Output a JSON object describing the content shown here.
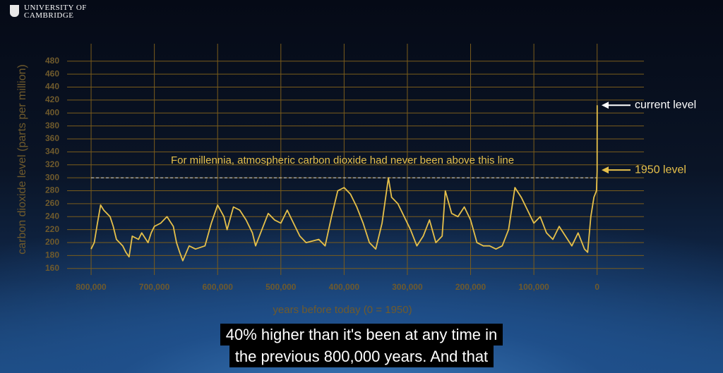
{
  "logo": [
    "UNIVERSITY OF",
    "CAMBRIDGE"
  ],
  "subtitles": [
    "40% higher than it's been at any time in",
    "the previous 800,000 years. And that"
  ],
  "chart_data": {
    "type": "line",
    "ylabel": "carbon dioxide level (parts per million)",
    "xlabel": "years before today (0 = 1950)",
    "threshold": {
      "text": "For millennia, atmospheric carbon dioxide had never been above this line",
      "value": 300
    },
    "annotations": [
      {
        "text": "current level",
        "value": 412
      },
      {
        "text": "1950 level",
        "value": 312
      }
    ],
    "color": "#e6c04a",
    "grid": true,
    "xlim": [
      838000,
      -74000
    ],
    "ylim": [
      150,
      507
    ],
    "xticks": [
      {
        "value": 800000,
        "label": "800,000"
      },
      {
        "value": 700000,
        "label": "700,000"
      },
      {
        "value": 600000,
        "label": "600,000"
      },
      {
        "value": 500000,
        "label": "500,000"
      },
      {
        "value": 400000,
        "label": "400,000"
      },
      {
        "value": 300000,
        "label": "300,000"
      },
      {
        "value": 200000,
        "label": "200,000"
      },
      {
        "value": 100000,
        "label": "100,000"
      },
      0
    ],
    "yticks": [
      160,
      180,
      200,
      220,
      240,
      260,
      280,
      300,
      320,
      340,
      360,
      380,
      400,
      420,
      440,
      460,
      480
    ],
    "x": [
      800000,
      795000,
      790000,
      785000,
      780000,
      770000,
      765000,
      760000,
      750000,
      745000,
      740000,
      735000,
      725000,
      720000,
      710000,
      705000,
      700000,
      690000,
      680000,
      670000,
      665000,
      660000,
      655000,
      645000,
      635000,
      620000,
      610000,
      600000,
      590000,
      585000,
      575000,
      565000,
      555000,
      545000,
      540000,
      530000,
      520000,
      510000,
      500000,
      490000,
      480000,
      470000,
      460000,
      440000,
      430000,
      420000,
      410000,
      400000,
      390000,
      380000,
      370000,
      360000,
      350000,
      340000,
      330000,
      325000,
      315000,
      305000,
      295000,
      285000,
      275000,
      265000,
      255000,
      245000,
      240000,
      230000,
      220000,
      210000,
      200000,
      190000,
      180000,
      170000,
      160000,
      150000,
      140000,
      130000,
      120000,
      110000,
      100000,
      90000,
      80000,
      70000,
      60000,
      50000,
      40000,
      30000,
      20000,
      15000,
      10000,
      5000,
      1000,
      0,
      -60
    ],
    "values": [
      190,
      200,
      230,
      258,
      250,
      240,
      225,
      205,
      195,
      185,
      178,
      210,
      205,
      215,
      200,
      215,
      225,
      230,
      240,
      225,
      200,
      185,
      172,
      195,
      190,
      195,
      230,
      258,
      240,
      220,
      255,
      250,
      235,
      215,
      195,
      220,
      245,
      235,
      230,
      250,
      230,
      210,
      200,
      205,
      195,
      240,
      280,
      285,
      275,
      255,
      230,
      200,
      190,
      230,
      300,
      270,
      260,
      240,
      220,
      195,
      210,
      235,
      200,
      210,
      280,
      245,
      240,
      255,
      235,
      200,
      195,
      195,
      190,
      195,
      220,
      285,
      270,
      250,
      230,
      240,
      215,
      205,
      225,
      210,
      195,
      215,
      190,
      185,
      240,
      270,
      280,
      310,
      412
    ]
  }
}
